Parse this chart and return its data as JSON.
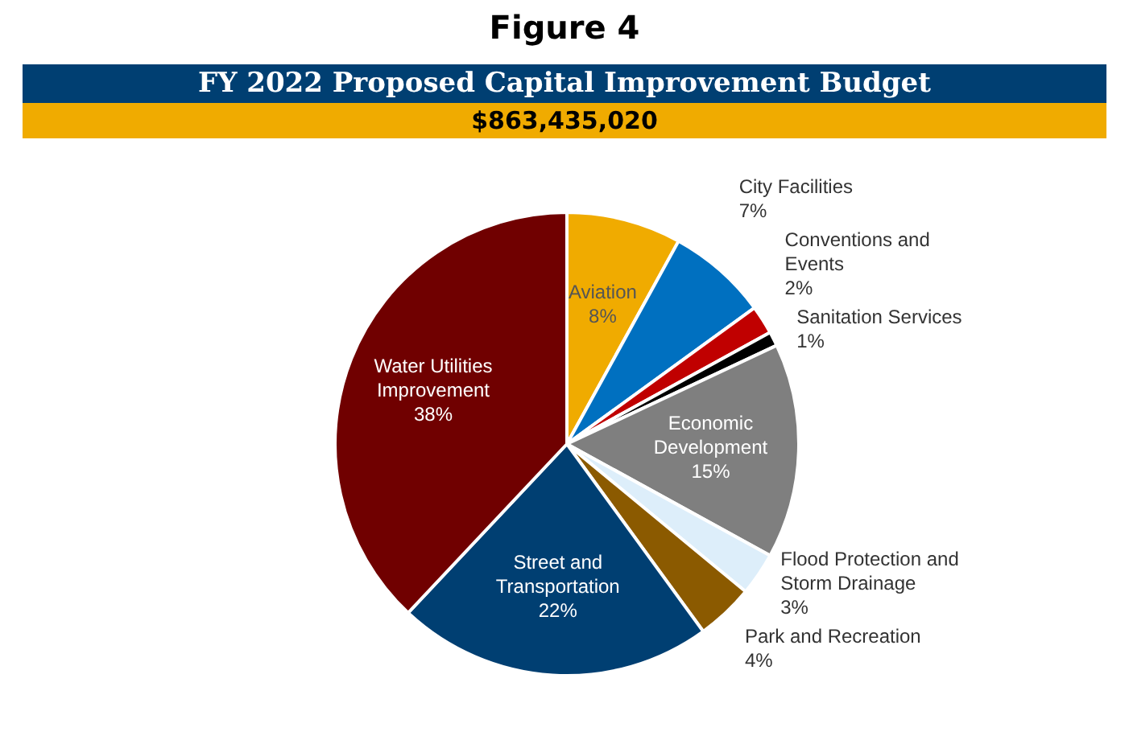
{
  "chart_data": {
    "type": "pie",
    "title": "Figure 4",
    "subtitle": "FY 2022 Proposed Capital Improvement Budget",
    "annotations": [
      "$863,435,020"
    ],
    "categories": [
      "Aviation",
      "City Facilities",
      "Conventions and Events",
      "Sanitation Services",
      "Economic Development",
      "Flood Protection and Storm Drainage",
      "Park and Recreation",
      "Street and Transportation",
      "Water Utilities Improvement"
    ],
    "values": [
      8,
      7,
      2,
      1,
      15,
      3,
      4,
      22,
      38
    ],
    "colors": [
      "#f0ab00",
      "#0070c0",
      "#c00000",
      "#000000",
      "#7f7f7f",
      "#ddeefa",
      "#8b5a00",
      "#003f72",
      "#700000"
    ],
    "value_labels": [
      "8%",
      "7%",
      "2%",
      "1%",
      "15%",
      "3%",
      "4%",
      "22%",
      "38%"
    ],
    "legend": false
  }
}
